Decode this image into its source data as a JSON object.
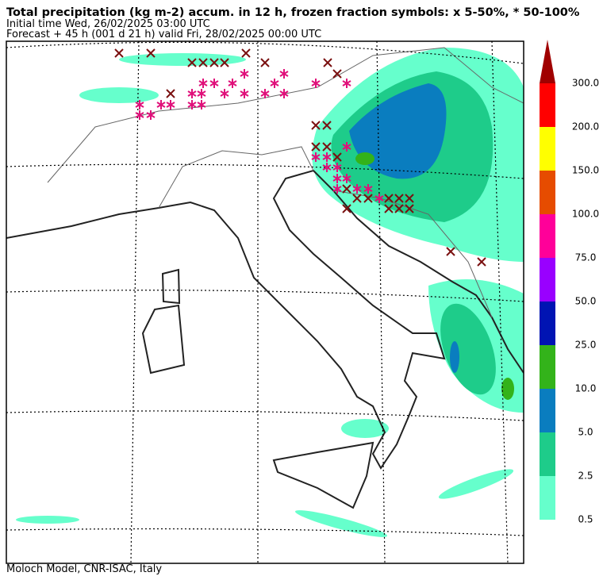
{
  "header": {
    "title": "Total precipitation (kg m-2) accum. in 12 h, frozen fraction symbols: x 5-50%, * 50-100%",
    "initial_time": "Initial time  Wed, 26/02/2025  03:00 UTC",
    "forecast": "Forecast  +  45 h  (001 d 21 h)  valid Fri, 28/02/2025 00:00 UTC"
  },
  "colorbar": {
    "labels": [
      "0.5",
      "2.5",
      "5.0",
      "10.0",
      "25.0",
      "50.0",
      "75.0",
      "100.0",
      "150.0",
      "200.0",
      "300.0"
    ],
    "colors": [
      "#66ffcc",
      "#1ecc8a",
      "#0a7dbf",
      "#33b31a",
      "#0014b3",
      "#9900ff",
      "#ff0099",
      "#e64c00",
      "#ffff00",
      "#ff0000",
      "#a00000"
    ]
  },
  "footer": "Moloch Model, CNR-ISAC, Italy"
}
